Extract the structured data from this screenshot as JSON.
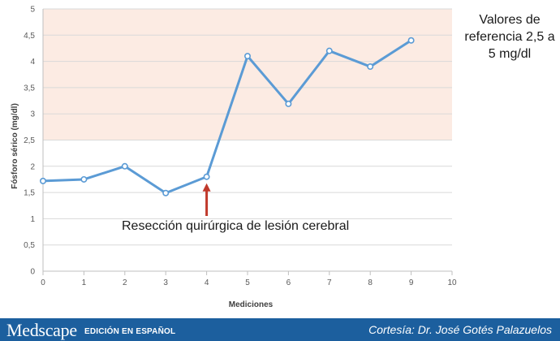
{
  "chart_data": {
    "type": "line",
    "ylabel": "Fósforo sérico (mg/dl)",
    "xlabel": "Mediciones",
    "xlim": [
      0,
      10
    ],
    "ylim": [
      0,
      5
    ],
    "x_ticks": [
      "0",
      "1",
      "2",
      "3",
      "4",
      "5",
      "6",
      "7",
      "8",
      "9",
      "10"
    ],
    "y_ticks": [
      "0",
      "0,5",
      "1",
      "1,5",
      "2",
      "2,5",
      "3",
      "3,5",
      "4",
      "4,5",
      "5"
    ],
    "grid": true,
    "series": [
      {
        "x": [
          0,
          1,
          2,
          3,
          4,
          5,
          6,
          7,
          8,
          9
        ],
        "values": [
          1.72,
          1.75,
          2.0,
          1.49,
          1.8,
          4.1,
          3.19,
          4.2,
          3.9,
          4.4
        ]
      }
    ],
    "reference_range": [
      2.5,
      5
    ],
    "reference_note": "Valores de referencia 2,5 a 5 mg/dl",
    "annotation": {
      "text": "Resección quirúrgica de lesión cerebral",
      "x": 4,
      "y": 1.8
    },
    "colors": {
      "line": "#5b9bd5",
      "band": "#fcebe3",
      "arrow": "#c0392b"
    }
  },
  "footer": {
    "logo": "Medscape",
    "edition": "EDICIÓN EN ESPAÑOL",
    "credit": "Cortesía: Dr. José Gotés Palazuelos"
  }
}
